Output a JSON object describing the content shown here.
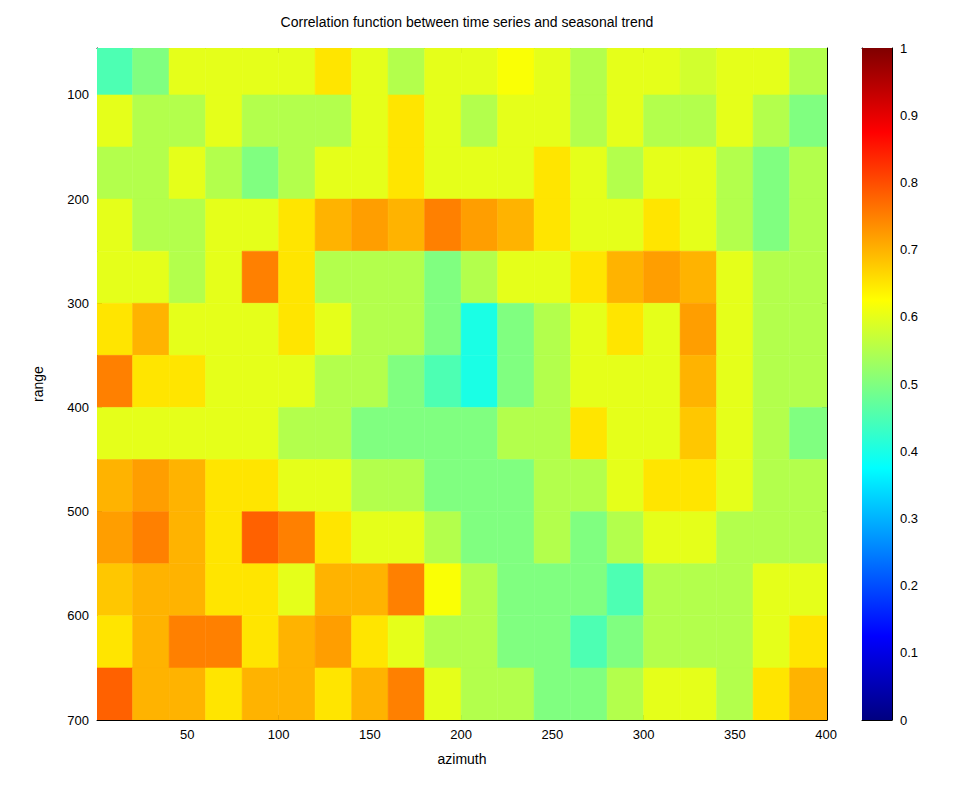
{
  "chart_data": {
    "type": "heatmap",
    "title": "Correlation function between time series and seasonal trend",
    "x_label": "azimuth",
    "y_label": "range",
    "xlim": [
      0.5,
      400.5
    ],
    "xticks": [
      50,
      100,
      150,
      200,
      250,
      300,
      350,
      400
    ],
    "ylim": [
      55,
      700
    ],
    "yticks": [
      100,
      200,
      300,
      400,
      500,
      600,
      700
    ],
    "grid": false,
    "x_edges": [
      0.5,
      20,
      40,
      60,
      80,
      100,
      120,
      140,
      160,
      180,
      200,
      220,
      240,
      260,
      280,
      300,
      320,
      340,
      360,
      380,
      400.5
    ],
    "y_edges": [
      55,
      100,
      150,
      200,
      250,
      300,
      350,
      400,
      450,
      500,
      550,
      600,
      650,
      700
    ],
    "cells": [
      [
        0.45,
        0.5,
        0.6,
        0.6,
        0.6,
        0.6,
        0.65,
        0.6,
        0.55,
        0.6,
        0.6,
        0.62,
        0.6,
        0.55,
        0.6,
        0.6,
        0.58,
        0.6,
        0.6,
        0.55
      ],
      [
        0.6,
        0.55,
        0.55,
        0.6,
        0.55,
        0.55,
        0.55,
        0.6,
        0.65,
        0.6,
        0.55,
        0.6,
        0.6,
        0.55,
        0.6,
        0.55,
        0.55,
        0.6,
        0.55,
        0.5
      ],
      [
        0.55,
        0.55,
        0.6,
        0.55,
        0.5,
        0.55,
        0.6,
        0.6,
        0.65,
        0.6,
        0.6,
        0.6,
        0.65,
        0.6,
        0.55,
        0.6,
        0.6,
        0.55,
        0.5,
        0.55
      ],
      [
        0.6,
        0.55,
        0.55,
        0.6,
        0.6,
        0.65,
        0.7,
        0.72,
        0.7,
        0.75,
        0.72,
        0.7,
        0.65,
        0.6,
        0.6,
        0.65,
        0.6,
        0.55,
        0.5,
        0.55
      ],
      [
        0.6,
        0.6,
        0.55,
        0.6,
        0.75,
        0.65,
        0.55,
        0.55,
        0.55,
        0.5,
        0.55,
        0.6,
        0.6,
        0.65,
        0.7,
        0.72,
        0.7,
        0.6,
        0.55,
        0.55
      ],
      [
        0.65,
        0.7,
        0.6,
        0.6,
        0.6,
        0.65,
        0.6,
        0.55,
        0.55,
        0.5,
        0.4,
        0.5,
        0.55,
        0.6,
        0.65,
        0.6,
        0.72,
        0.6,
        0.55,
        0.55
      ],
      [
        0.75,
        0.65,
        0.65,
        0.6,
        0.6,
        0.6,
        0.55,
        0.55,
        0.5,
        0.45,
        0.4,
        0.5,
        0.55,
        0.6,
        0.6,
        0.6,
        0.7,
        0.6,
        0.55,
        0.55
      ],
      [
        0.6,
        0.6,
        0.6,
        0.6,
        0.6,
        0.55,
        0.55,
        0.5,
        0.5,
        0.5,
        0.5,
        0.55,
        0.55,
        0.65,
        0.6,
        0.6,
        0.68,
        0.6,
        0.55,
        0.5
      ],
      [
        0.7,
        0.72,
        0.7,
        0.65,
        0.65,
        0.6,
        0.6,
        0.55,
        0.55,
        0.5,
        0.5,
        0.5,
        0.55,
        0.55,
        0.6,
        0.65,
        0.65,
        0.6,
        0.55,
        0.55
      ],
      [
        0.72,
        0.75,
        0.7,
        0.65,
        0.78,
        0.75,
        0.65,
        0.6,
        0.6,
        0.55,
        0.5,
        0.5,
        0.55,
        0.5,
        0.55,
        0.6,
        0.6,
        0.55,
        0.55,
        0.55
      ],
      [
        0.68,
        0.7,
        0.7,
        0.65,
        0.65,
        0.6,
        0.7,
        0.7,
        0.75,
        0.62,
        0.55,
        0.5,
        0.5,
        0.5,
        0.45,
        0.55,
        0.55,
        0.55,
        0.6,
        0.6
      ],
      [
        0.65,
        0.7,
        0.75,
        0.75,
        0.65,
        0.7,
        0.72,
        0.65,
        0.6,
        0.55,
        0.55,
        0.5,
        0.5,
        0.45,
        0.5,
        0.55,
        0.55,
        0.55,
        0.6,
        0.65
      ],
      [
        0.78,
        0.7,
        0.7,
        0.65,
        0.7,
        0.7,
        0.65,
        0.7,
        0.75,
        0.6,
        0.55,
        0.55,
        0.5,
        0.5,
        0.55,
        0.6,
        0.6,
        0.55,
        0.65,
        0.7
      ]
    ],
    "colorbar": {
      "range": [
        0,
        1
      ],
      "ticks": [
        0,
        0.1,
        0.2,
        0.3,
        0.4,
        0.5,
        0.6,
        0.7,
        0.8,
        0.9,
        1
      ]
    }
  }
}
